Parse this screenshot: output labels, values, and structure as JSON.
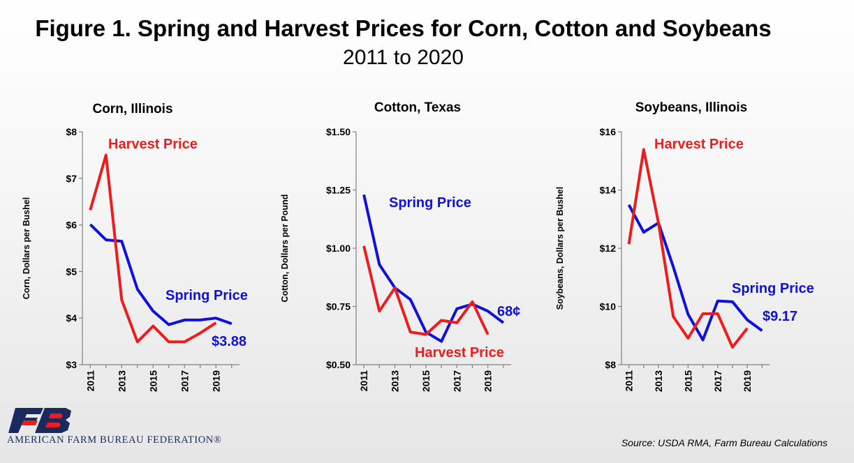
{
  "header": {
    "title": "Figure 1. Spring and Harvest Prices for Corn, Cotton and Soybeans",
    "subtitle": "2011 to 2020"
  },
  "footer": {
    "logo_text": "AMERICAN FARM BUREAU FEDERATION®",
    "source": "Source: USDA RMA, Farm Bureau Calculations"
  },
  "colors": {
    "spring": "#1010dd",
    "harvest": "#ee1c1c",
    "logo": "#1b2a5e"
  },
  "chart_data": [
    {
      "type": "line",
      "title": "Corn, Illinois",
      "ylabel": "Corn, Dollars per Bushel",
      "ylim": [
        3,
        8
      ],
      "yticks": [
        3,
        4,
        5,
        6,
        7,
        8
      ],
      "ytick_labels": [
        "$3",
        "$4",
        "$5",
        "$6",
        "$7",
        "$8"
      ],
      "x": [
        2011,
        2012,
        2013,
        2014,
        2015,
        2016,
        2017,
        2018,
        2019,
        2020
      ],
      "xtick_labels": [
        "2011",
        "2013",
        "2015",
        "2017",
        "2019"
      ],
      "xtick_values": [
        2011,
        2013,
        2015,
        2017,
        2019
      ],
      "series": [
        {
          "name": "Spring Price",
          "color": "#1010dd",
          "x": [
            2011,
            2012,
            2013,
            2014,
            2015,
            2016,
            2017,
            2018,
            2019,
            2020
          ],
          "values": [
            6.01,
            5.68,
            5.65,
            4.62,
            4.15,
            3.86,
            3.96,
            3.96,
            4.0,
            3.88
          ]
        },
        {
          "name": "Harvest Price",
          "color": "#ee1c1c",
          "x": [
            2011,
            2012,
            2013,
            2014,
            2015,
            2016,
            2017,
            2018,
            2019
          ],
          "values": [
            6.32,
            7.5,
            4.39,
            3.49,
            3.83,
            3.49,
            3.49,
            3.68,
            3.9
          ]
        }
      ],
      "annotations": [
        {
          "text": "Harvest Price",
          "color": "#ee1c1c"
        },
        {
          "text": "Spring Price",
          "color": "#1010dd"
        },
        {
          "text": "$3.88",
          "color": "#1010dd"
        }
      ]
    },
    {
      "type": "line",
      "title": "Cotton, Texas",
      "ylabel": "Cotton, Dollars per Pound",
      "ylim": [
        0.5,
        1.5
      ],
      "yticks": [
        0.5,
        0.75,
        1.0,
        1.25,
        1.5
      ],
      "ytick_labels": [
        "$0.50",
        "$0.75",
        "$1.00",
        "$1.25",
        "$1.50"
      ],
      "x": [
        2011,
        2012,
        2013,
        2014,
        2015,
        2016,
        2017,
        2018,
        2019,
        2020
      ],
      "xtick_labels": [
        "2011",
        "2013",
        "2015",
        "2017",
        "2019"
      ],
      "xtick_values": [
        2011,
        2013,
        2015,
        2017,
        2019
      ],
      "series": [
        {
          "name": "Spring Price",
          "color": "#1010dd",
          "x": [
            2011,
            2012,
            2013,
            2014,
            2015,
            2016,
            2017,
            2018,
            2019,
            2020
          ],
          "values": [
            1.23,
            0.93,
            0.83,
            0.78,
            0.64,
            0.6,
            0.74,
            0.76,
            0.73,
            0.68
          ]
        },
        {
          "name": "Harvest Price",
          "color": "#ee1c1c",
          "x": [
            2011,
            2012,
            2013,
            2014,
            2015,
            2016,
            2017,
            2018,
            2019
          ],
          "values": [
            1.01,
            0.73,
            0.83,
            0.64,
            0.63,
            0.69,
            0.68,
            0.77,
            0.63
          ]
        }
      ],
      "annotations": [
        {
          "text": "Spring Price",
          "color": "#1010dd"
        },
        {
          "text": "68¢",
          "color": "#1010dd"
        },
        {
          "text": "Harvest Price",
          "color": "#ee1c1c"
        }
      ]
    },
    {
      "type": "line",
      "title": "Soybeans, Illinois",
      "ylabel": "Soybeans, Dollars per Bushel",
      "ylim": [
        8,
        16
      ],
      "yticks": [
        8,
        10,
        12,
        14,
        16
      ],
      "ytick_labels": [
        "$8",
        "$10",
        "$12",
        "$14",
        "$16"
      ],
      "x": [
        2011,
        2012,
        2013,
        2014,
        2015,
        2016,
        2017,
        2018,
        2019,
        2020
      ],
      "xtick_labels": [
        "2011",
        "2013",
        "2015",
        "2017",
        "2019"
      ],
      "xtick_values": [
        2011,
        2013,
        2015,
        2017,
        2019
      ],
      "series": [
        {
          "name": "Spring Price",
          "color": "#1010dd",
          "x": [
            2011,
            2012,
            2013,
            2014,
            2015,
            2016,
            2017,
            2018,
            2019,
            2020
          ],
          "values": [
            13.49,
            12.55,
            12.87,
            11.36,
            9.73,
            8.85,
            10.19,
            10.16,
            9.54,
            9.17
          ]
        },
        {
          "name": "Harvest Price",
          "color": "#ee1c1c",
          "x": [
            2011,
            2012,
            2013,
            2014,
            2015,
            2016,
            2017,
            2018,
            2019
          ],
          "values": [
            12.14,
            15.39,
            12.87,
            9.65,
            8.91,
            9.75,
            9.75,
            8.6,
            9.25
          ]
        }
      ],
      "annotations": [
        {
          "text": "Harvest Price",
          "color": "#ee1c1c"
        },
        {
          "text": "Spring Price",
          "color": "#1010dd"
        },
        {
          "text": "$9.17",
          "color": "#1010dd"
        }
      ]
    }
  ]
}
